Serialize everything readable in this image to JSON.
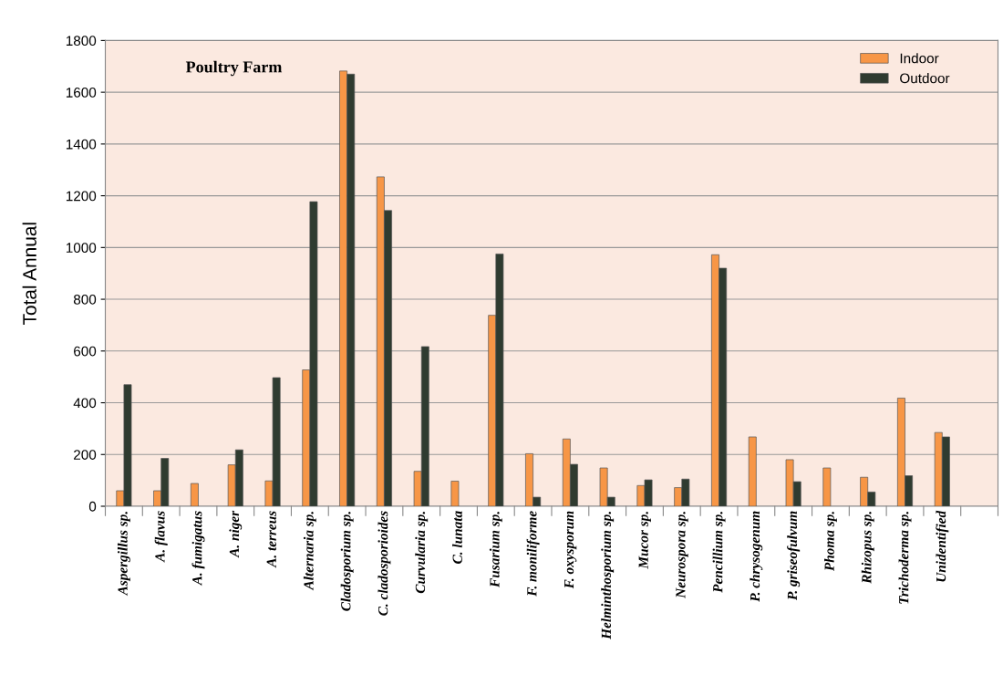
{
  "chart_data": {
    "type": "bar",
    "title": "Poultry Farm",
    "ylabel": "Total Annual",
    "categories": [
      "Aspergillus sp.",
      "A. flavus",
      "A. fumigatus",
      "A. niger",
      "A. terreus",
      "Alternaria sp.",
      "Cladosporium sp.",
      "C. cladosporioides",
      "Curvularia sp.",
      "C. lunata",
      "Fusarium sp.",
      "F. moniliforme",
      "F. oxysporum",
      "Helminthosporium sp.",
      "Mucor sp.",
      "Neurospora sp.",
      "Pencillium sp.",
      "P. chrysogenum",
      "P. griseofulvum",
      "Phoma sp.",
      "Rhizopus sp.",
      "Trichoderma sp.",
      "Unidentified",
      null
    ],
    "series": [
      {
        "name": "Indoor",
        "color": "#f79646",
        "values": [
          60,
          60,
          88,
          160,
          98,
          527,
          1682,
          1273,
          135,
          97,
          738,
          203,
          260,
          148,
          80,
          72,
          972,
          268,
          180,
          148,
          112,
          418,
          285,
          null
        ]
      },
      {
        "name": "Outdoor",
        "color": "#2f3b30",
        "values": [
          470,
          185,
          null,
          218,
          497,
          1177,
          1670,
          1143,
          617,
          null,
          975,
          35,
          162,
          35,
          102,
          105,
          920,
          null,
          95,
          null,
          55,
          118,
          268,
          null
        ]
      }
    ],
    "ylim": [
      0,
      1800
    ],
    "yticks": [
      0,
      200,
      400,
      600,
      800,
      1000,
      1200,
      1400,
      1600,
      1800
    ],
    "grid": "y",
    "legend": "top right"
  }
}
